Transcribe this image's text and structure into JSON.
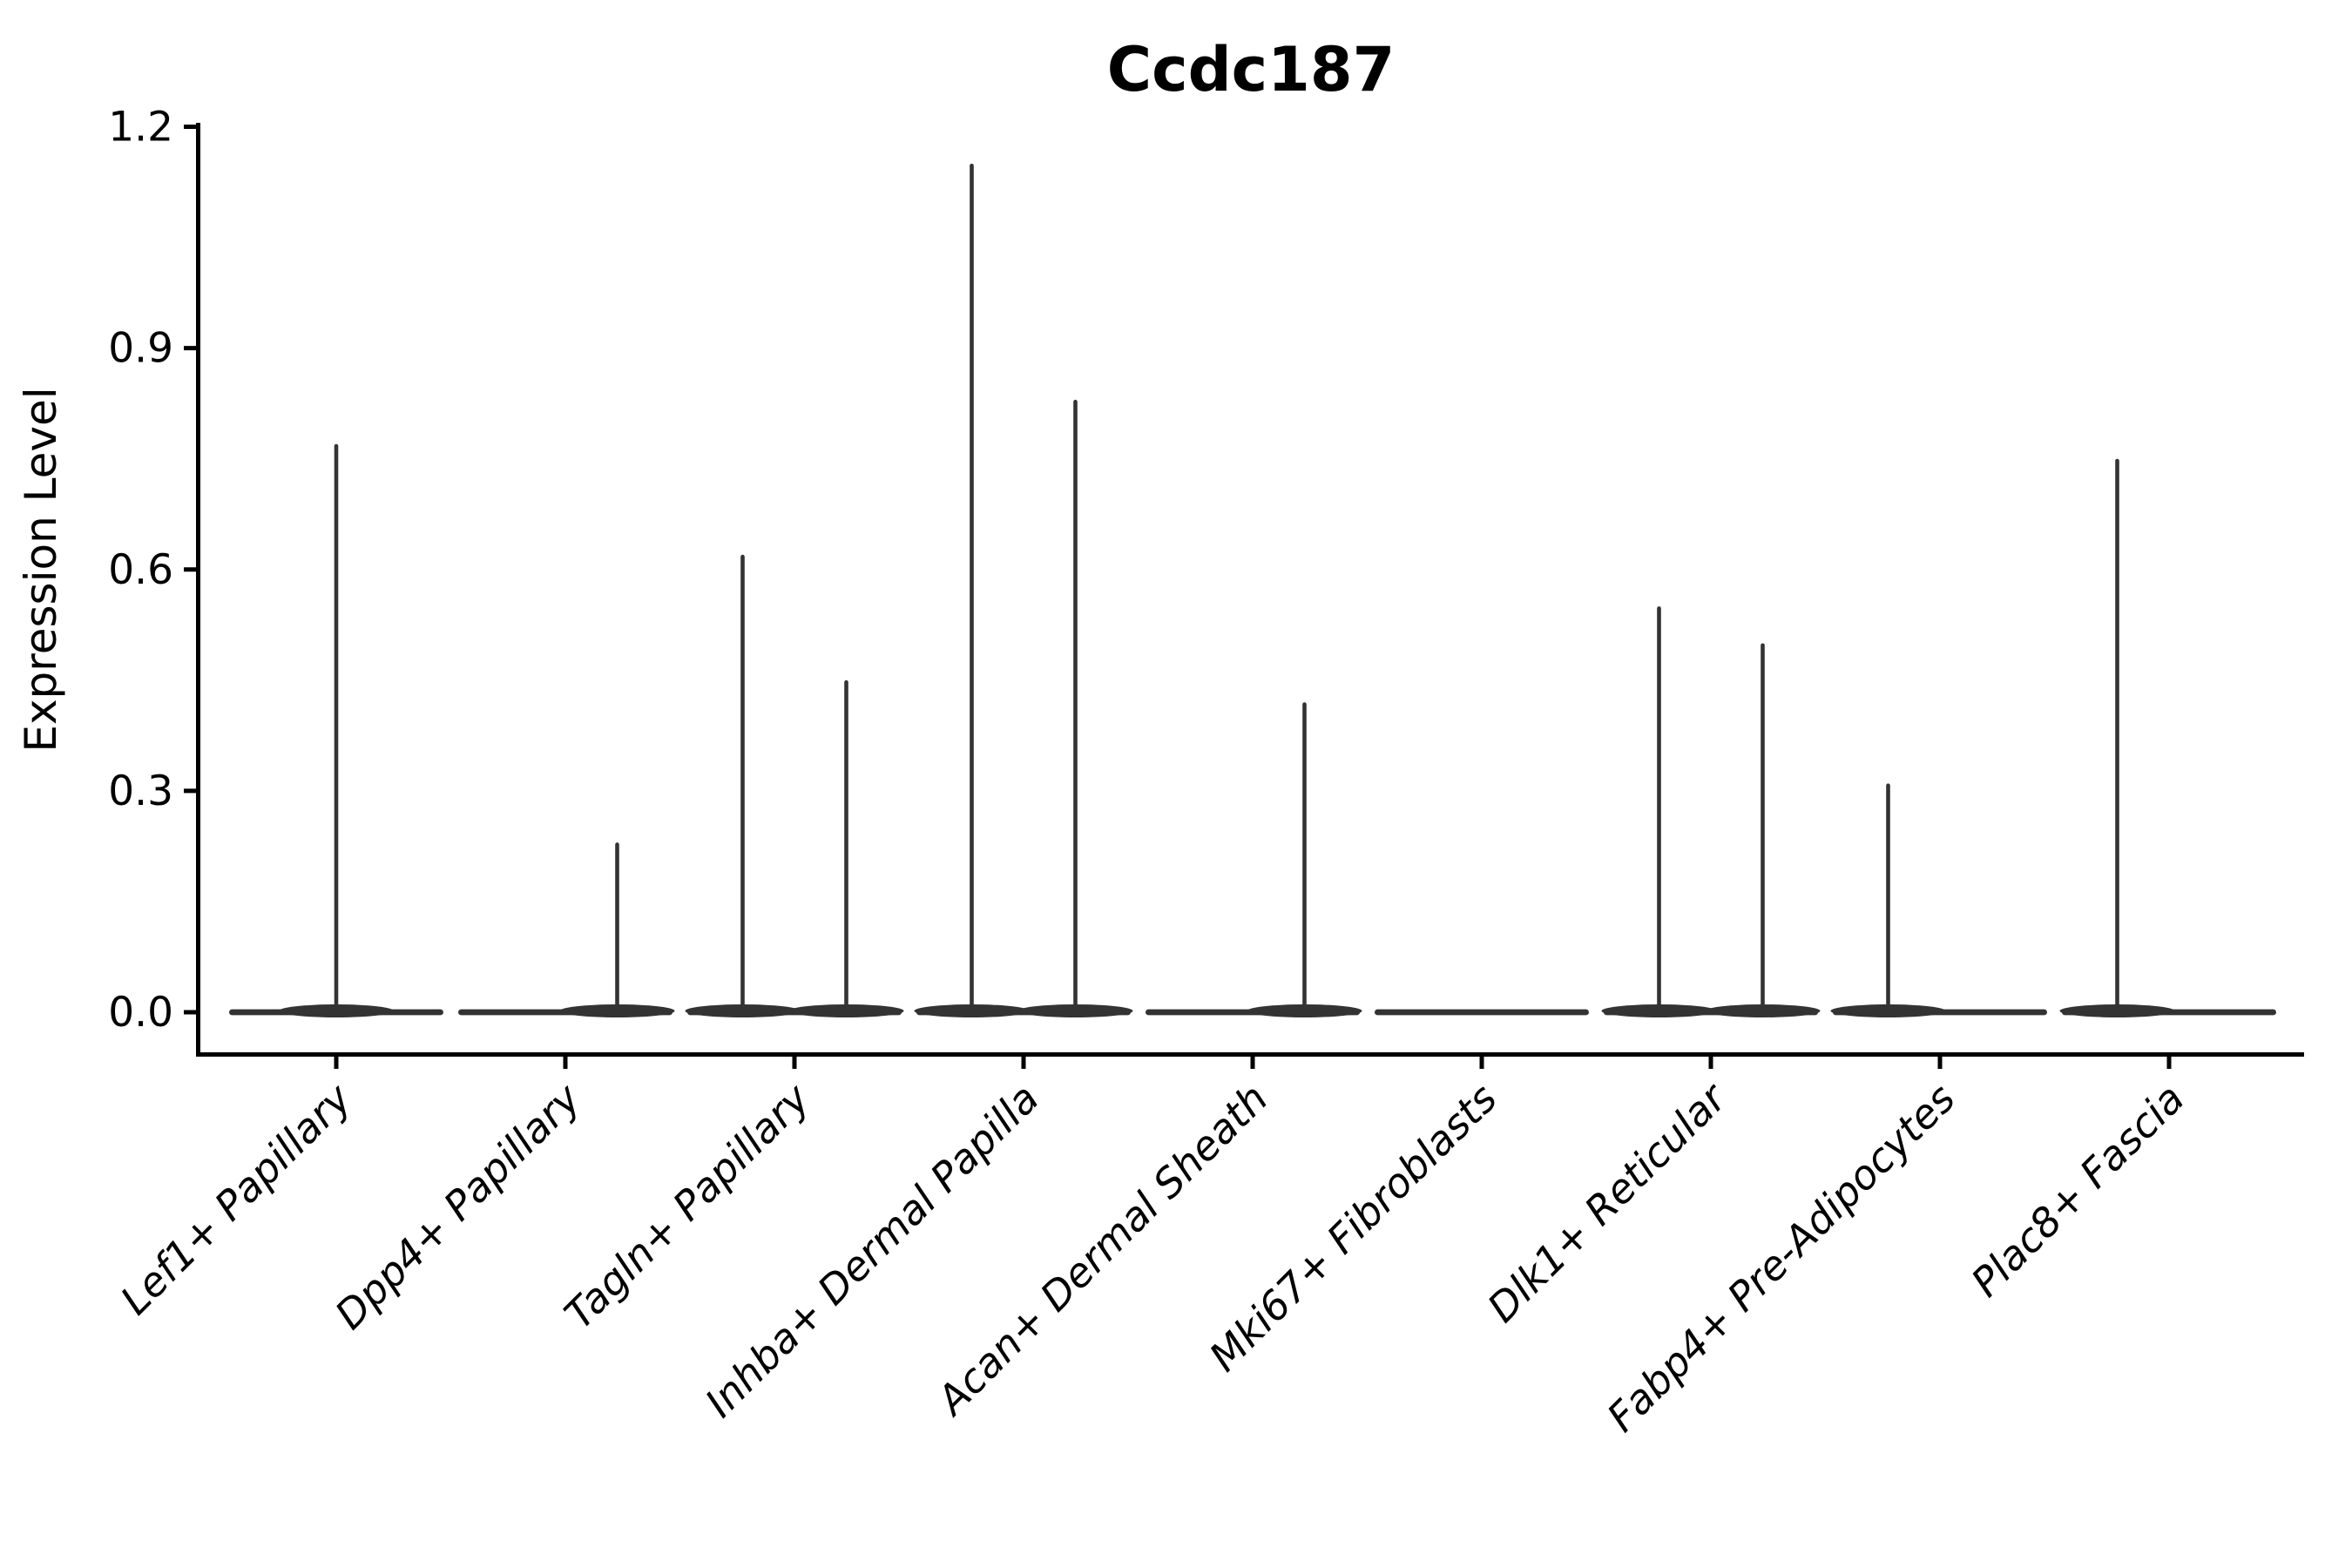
{
  "figure": {
    "background": "#ffffff"
  },
  "colors": {
    "violin": "#333333",
    "axis": "#000000",
    "text": "#000000"
  },
  "chart_data": {
    "type": "violin",
    "title": "Ccdc187",
    "xlabel": "",
    "ylabel": "Expression Level",
    "ylim": [
      0,
      1.2
    ],
    "grid": false,
    "legend": null,
    "yticks": [
      {
        "value": 0.0,
        "label": "0.0"
      },
      {
        "value": 0.3,
        "label": "0.3"
      },
      {
        "value": 0.6,
        "label": "0.6"
      },
      {
        "value": 0.9,
        "label": "0.9"
      },
      {
        "value": 1.2,
        "label": "1.2"
      }
    ],
    "categories": [
      "Lef1+ Papillary",
      "Dpp4+ Papillary",
      "Tagln+ Papillary",
      "Inhba+ Dermal Papilla",
      "Acan+ Dermal Sheath",
      "Mki67+ Fibroblasts",
      "Dlk1+ Reticular",
      "Fabp4+ Pre-Adipocytes",
      "Plac8+ Fascia"
    ],
    "violins": [
      {
        "category": "Lef1+ Papillary",
        "baseline": 0.0,
        "spikes": [
          {
            "position": "center",
            "value": 0.77
          }
        ]
      },
      {
        "category": "Dpp4+ Papillary",
        "baseline": 0.0,
        "spikes": [
          {
            "position": "right",
            "value": 0.23
          }
        ]
      },
      {
        "category": "Tagln+ Papillary",
        "baseline": 0.0,
        "spikes": [
          {
            "position": "left",
            "value": 0.62
          },
          {
            "position": "right",
            "value": 0.45
          }
        ]
      },
      {
        "category": "Inhba+ Dermal Papilla",
        "baseline": 0.0,
        "spikes": [
          {
            "position": "left",
            "value": 1.15
          },
          {
            "position": "right",
            "value": 0.83
          }
        ]
      },
      {
        "category": "Acan+ Dermal Sheath",
        "baseline": 0.0,
        "spikes": [
          {
            "position": "right",
            "value": 0.42
          }
        ]
      },
      {
        "category": "Mki67+ Fibroblasts",
        "baseline": 0.0,
        "spikes": []
      },
      {
        "category": "Dlk1+ Reticular",
        "baseline": 0.0,
        "spikes": [
          {
            "position": "left",
            "value": 0.55
          },
          {
            "position": "right",
            "value": 0.5
          }
        ]
      },
      {
        "category": "Fabp4+ Pre-Adipocytes",
        "baseline": 0.0,
        "spikes": [
          {
            "position": "left",
            "value": 0.31
          }
        ]
      },
      {
        "category": "Plac8+ Fascia",
        "baseline": 0.0,
        "spikes": [
          {
            "position": "left",
            "value": 0.75
          }
        ]
      }
    ],
    "layout": {
      "x_label_rotation_deg": 45,
      "x_label_style": "italic",
      "spines": [
        "left",
        "bottom"
      ],
      "violin_width_fraction": 0.935,
      "sub_violin_offset_fraction": 0.226
    }
  }
}
